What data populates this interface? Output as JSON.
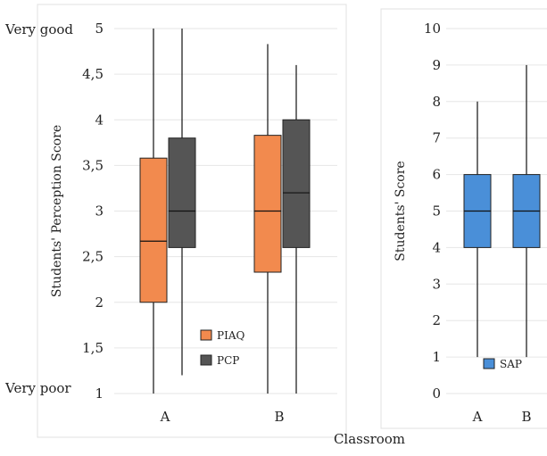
{
  "figure": {
    "shared_xlabel": "Classroom"
  },
  "chart_data": [
    {
      "type": "boxplot",
      "ylabel": "Students' Perception Score",
      "ylim": [
        1,
        5
      ],
      "yticks": [
        "1",
        "1,5",
        "2",
        "2,5",
        "3",
        "3,5",
        "4",
        "4,5",
        "5"
      ],
      "y_extreme_labels": {
        "top": "Very good",
        "bottom": "Very poor"
      },
      "categories": [
        "A",
        "B"
      ],
      "legend_placement": "bottom-right",
      "series": [
        {
          "name": "PIAQ",
          "color": "#f28a4e",
          "boxes": [
            {
              "category": "A",
              "min": 1,
              "q1": 2.0,
              "median": 2.67,
              "q3": 3.58,
              "max": 5
            },
            {
              "category": "B",
              "min": 1,
              "q1": 2.33,
              "median": 3.0,
              "q3": 3.83,
              "max": 4.83
            }
          ]
        },
        {
          "name": "PCP",
          "color": "#555555",
          "boxes": [
            {
              "category": "A",
              "min": 1.2,
              "q1": 2.6,
              "median": 3.0,
              "q3": 3.8,
              "max": 5
            },
            {
              "category": "B",
              "min": 1,
              "q1": 2.6,
              "median": 3.2,
              "q3": 4.0,
              "max": 4.6
            }
          ]
        }
      ]
    },
    {
      "type": "boxplot",
      "ylabel": "Students' Score",
      "ylim": [
        0,
        10
      ],
      "yticks": [
        "0",
        "1",
        "2",
        "3",
        "4",
        "5",
        "6",
        "7",
        "8",
        "9",
        "10"
      ],
      "categories": [
        "A",
        "B"
      ],
      "legend_placement": "bottom-left",
      "series": [
        {
          "name": "SAP",
          "color": "#4a8fd8",
          "boxes": [
            {
              "category": "A",
              "min": 1,
              "q1": 4,
              "median": 5,
              "q3": 6,
              "max": 8
            },
            {
              "category": "B",
              "min": 1,
              "q1": 4,
              "median": 5,
              "q3": 6,
              "max": 9
            }
          ]
        }
      ]
    }
  ]
}
